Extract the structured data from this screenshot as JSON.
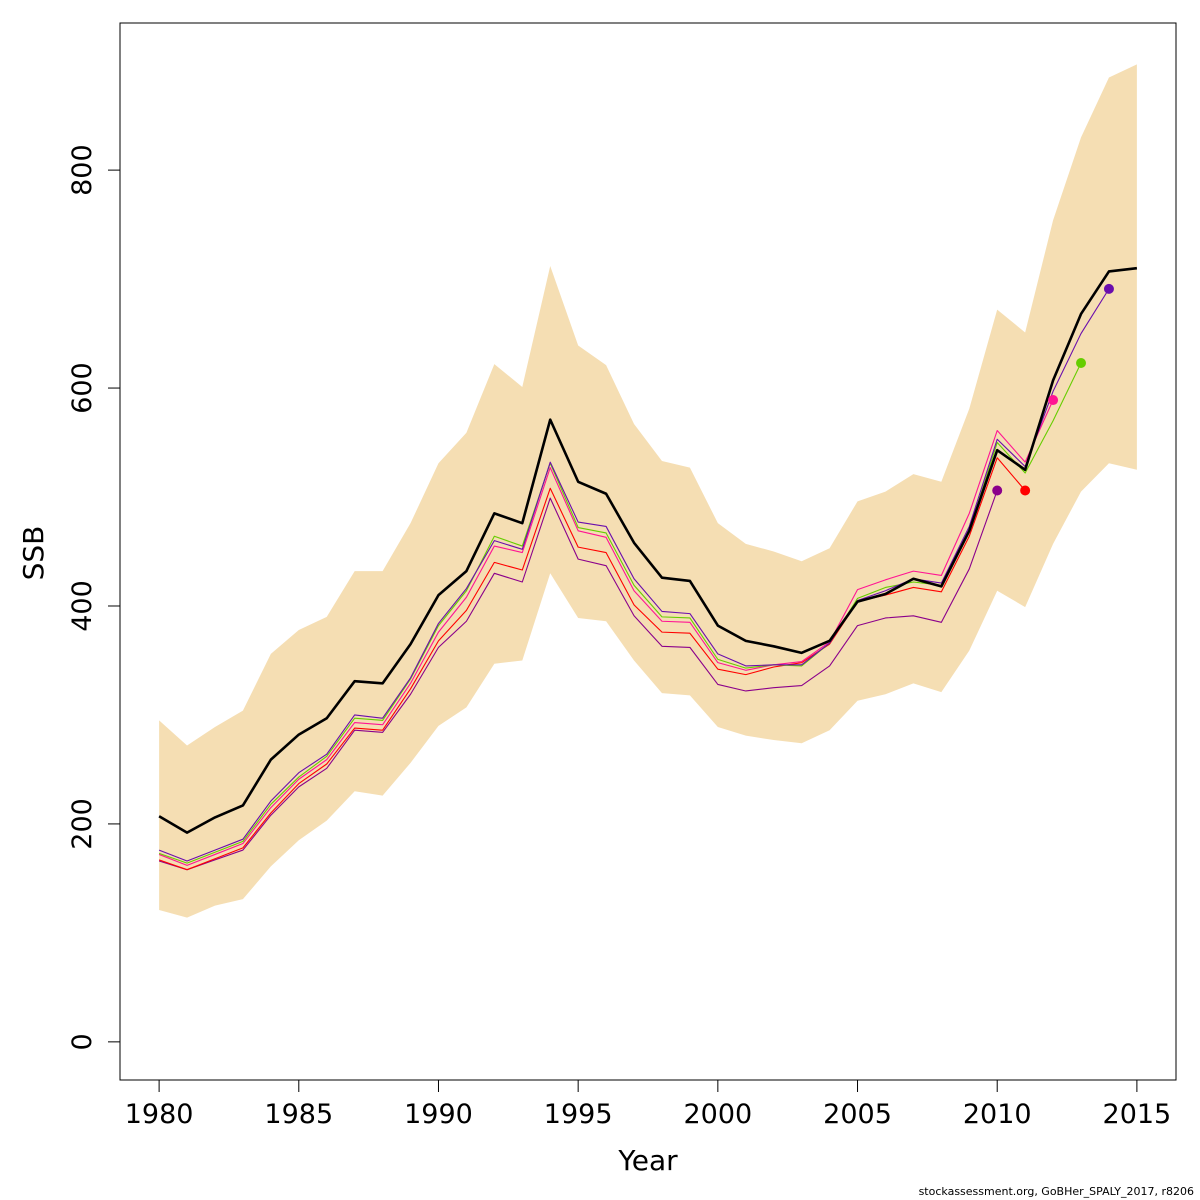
{
  "chart_data": {
    "type": "line",
    "xlabel": "Year",
    "ylabel": "SSB",
    "xlim": [
      1978.6,
      2016.4
    ],
    "ylim": [
      -35,
      935
    ],
    "x_ticks": [
      1980,
      1985,
      1990,
      1995,
      2000,
      2005,
      2010,
      2015
    ],
    "y_ticks": [
      0,
      200,
      400,
      600,
      800
    ],
    "x_tick_labels": [
      "1980",
      "1985",
      "1990",
      "1995",
      "2000",
      "2005",
      "2010",
      "2015"
    ],
    "y_tick_labels": [
      "0",
      "200",
      "400",
      "600",
      "800"
    ],
    "grid": false,
    "legend": "none",
    "band_color": "#f5deb3",
    "confidence_band": {
      "x": [
        1980,
        1981,
        1982,
        1983,
        1984,
        1985,
        1986,
        1987,
        1988,
        1989,
        1990,
        1991,
        1992,
        1993,
        1994,
        1995,
        1996,
        1997,
        1998,
        1999,
        2000,
        2001,
        2002,
        2003,
        2004,
        2005,
        2006,
        2007,
        2008,
        2009,
        2010,
        2011,
        2012,
        2013,
        2014,
        2015
      ],
      "upper": [
        295,
        272,
        289,
        304,
        356,
        378,
        390,
        432,
        432,
        476,
        531,
        559,
        622,
        601,
        712,
        639,
        621,
        567,
        533,
        527,
        476,
        457,
        450,
        441,
        453,
        496,
        505,
        521,
        514,
        581,
        672,
        651,
        754,
        830,
        885,
        897
      ],
      "lower": [
        121,
        114,
        125,
        131,
        161,
        185,
        203,
        230,
        226,
        256,
        290,
        307,
        347,
        350,
        430,
        389,
        386,
        350,
        320,
        318,
        289,
        281,
        277,
        274,
        286,
        313,
        319,
        329,
        321,
        359,
        414,
        399,
        457,
        505,
        531,
        525
      ]
    },
    "series": [
      {
        "color": "#000000",
        "x": [
          1980,
          1981,
          1982,
          1983,
          1984,
          1985,
          1986,
          1987,
          1988,
          1989,
          1990,
          1991,
          1992,
          1993,
          1994,
          1995,
          1996,
          1997,
          1998,
          1999,
          2000,
          2001,
          2002,
          2003,
          2004,
          2005,
          2006,
          2007,
          2008,
          2009,
          2010,
          2011,
          2012,
          2013,
          2014,
          2015
        ],
        "values": [
          207,
          192,
          206,
          217,
          259,
          282,
          297,
          331,
          329,
          365,
          410,
          432,
          485,
          476,
          571,
          514,
          503,
          458,
          426,
          423,
          382,
          368,
          363,
          357,
          368,
          404,
          411,
          425,
          418,
          469,
          543,
          525,
          607,
          668,
          707,
          710
        ]
      },
      {
        "color": "#8b008b",
        "x": [
          1980,
          1981,
          1982,
          1983,
          1984,
          1985,
          1986,
          1987,
          1988,
          1989,
          1990,
          1991,
          1992,
          1993,
          1994,
          1995,
          1996,
          1997,
          1998,
          1999,
          2000,
          2001,
          2002,
          2003,
          2004,
          2005,
          2006,
          2007,
          2008,
          2009,
          2010
        ],
        "values": [
          166,
          158,
          167,
          176,
          208,
          234,
          251,
          286,
          284,
          319,
          362,
          386,
          430,
          422,
          499,
          443,
          437,
          391,
          363,
          362,
          328,
          322,
          325,
          327,
          345,
          382,
          389,
          391,
          385,
          434,
          506
        ],
        "end_point": [
          2010,
          506
        ]
      },
      {
        "color": "#ff0000",
        "x": [
          1980,
          1981,
          1982,
          1983,
          1984,
          1985,
          1986,
          1987,
          1988,
          1989,
          1990,
          1991,
          1992,
          1993,
          1994,
          1995,
          1996,
          1997,
          1998,
          1999,
          2000,
          2001,
          2002,
          2003,
          2004,
          2005,
          2006,
          2007,
          2008,
          2009,
          2010,
          2011
        ],
        "values": [
          167,
          158,
          168,
          178,
          210,
          237,
          255,
          288,
          286,
          324,
          368,
          396,
          440,
          433,
          508,
          454,
          449,
          401,
          376,
          375,
          342,
          337,
          344,
          348,
          365,
          404,
          410,
          417,
          413,
          464,
          536,
          506
        ],
        "end_point": [
          2011,
          506
        ]
      },
      {
        "color": "#ff1493",
        "x": [
          1980,
          1981,
          1982,
          1983,
          1984,
          1985,
          1986,
          1987,
          1988,
          1989,
          1990,
          1991,
          1992,
          1993,
          1994,
          1995,
          1996,
          1997,
          1998,
          1999,
          2000,
          2001,
          2002,
          2003,
          2004,
          2005,
          2006,
          2007,
          2008,
          2009,
          2010,
          2011,
          2012
        ],
        "values": [
          172,
          162,
          172,
          182,
          215,
          241,
          259,
          293,
          291,
          329,
          376,
          408,
          455,
          449,
          527,
          469,
          463,
          414,
          386,
          385,
          348,
          341,
          346,
          349,
          367,
          415,
          424,
          432,
          428,
          485,
          561,
          532,
          589
        ],
        "end_point": [
          2012,
          589
        ]
      },
      {
        "color": "#66cd00",
        "x": [
          1980,
          1981,
          1982,
          1983,
          1984,
          1985,
          1986,
          1987,
          1988,
          1989,
          1990,
          1991,
          1992,
          1993,
          1994,
          1995,
          1996,
          1997,
          1998,
          1999,
          2000,
          2001,
          2002,
          2003,
          2004,
          2005,
          2006,
          2007,
          2008,
          2009,
          2010,
          2011,
          2012,
          2013
        ],
        "values": [
          173,
          164,
          174,
          184,
          218,
          243,
          262,
          297,
          295,
          333,
          382,
          414,
          464,
          455,
          531,
          472,
          467,
          419,
          390,
          389,
          351,
          343,
          346,
          345,
          366,
          407,
          417,
          422,
          419,
          469,
          550,
          522,
          570,
          623
        ],
        "end_point": [
          2013,
          623
        ]
      },
      {
        "color": "#6a0dad",
        "x": [
          1980,
          1981,
          1982,
          1983,
          1984,
          1985,
          1986,
          1987,
          1988,
          1989,
          1990,
          1991,
          1992,
          1993,
          1994,
          1995,
          1996,
          1997,
          1998,
          1999,
          2000,
          2001,
          2002,
          2003,
          2004,
          2005,
          2006,
          2007,
          2008,
          2009,
          2010,
          2011,
          2012,
          2013,
          2014
        ],
        "values": [
          176,
          166,
          176,
          186,
          221,
          247,
          264,
          300,
          297,
          334,
          384,
          416,
          460,
          452,
          532,
          477,
          473,
          425,
          395,
          393,
          356,
          345,
          346,
          346,
          366,
          405,
          414,
          425,
          421,
          473,
          553,
          528,
          597,
          650,
          691
        ],
        "end_point": [
          2014,
          691
        ]
      }
    ]
  },
  "footer": {
    "text": "stockassessment.org, GoBHer_SPALY_2017, r8206"
  }
}
